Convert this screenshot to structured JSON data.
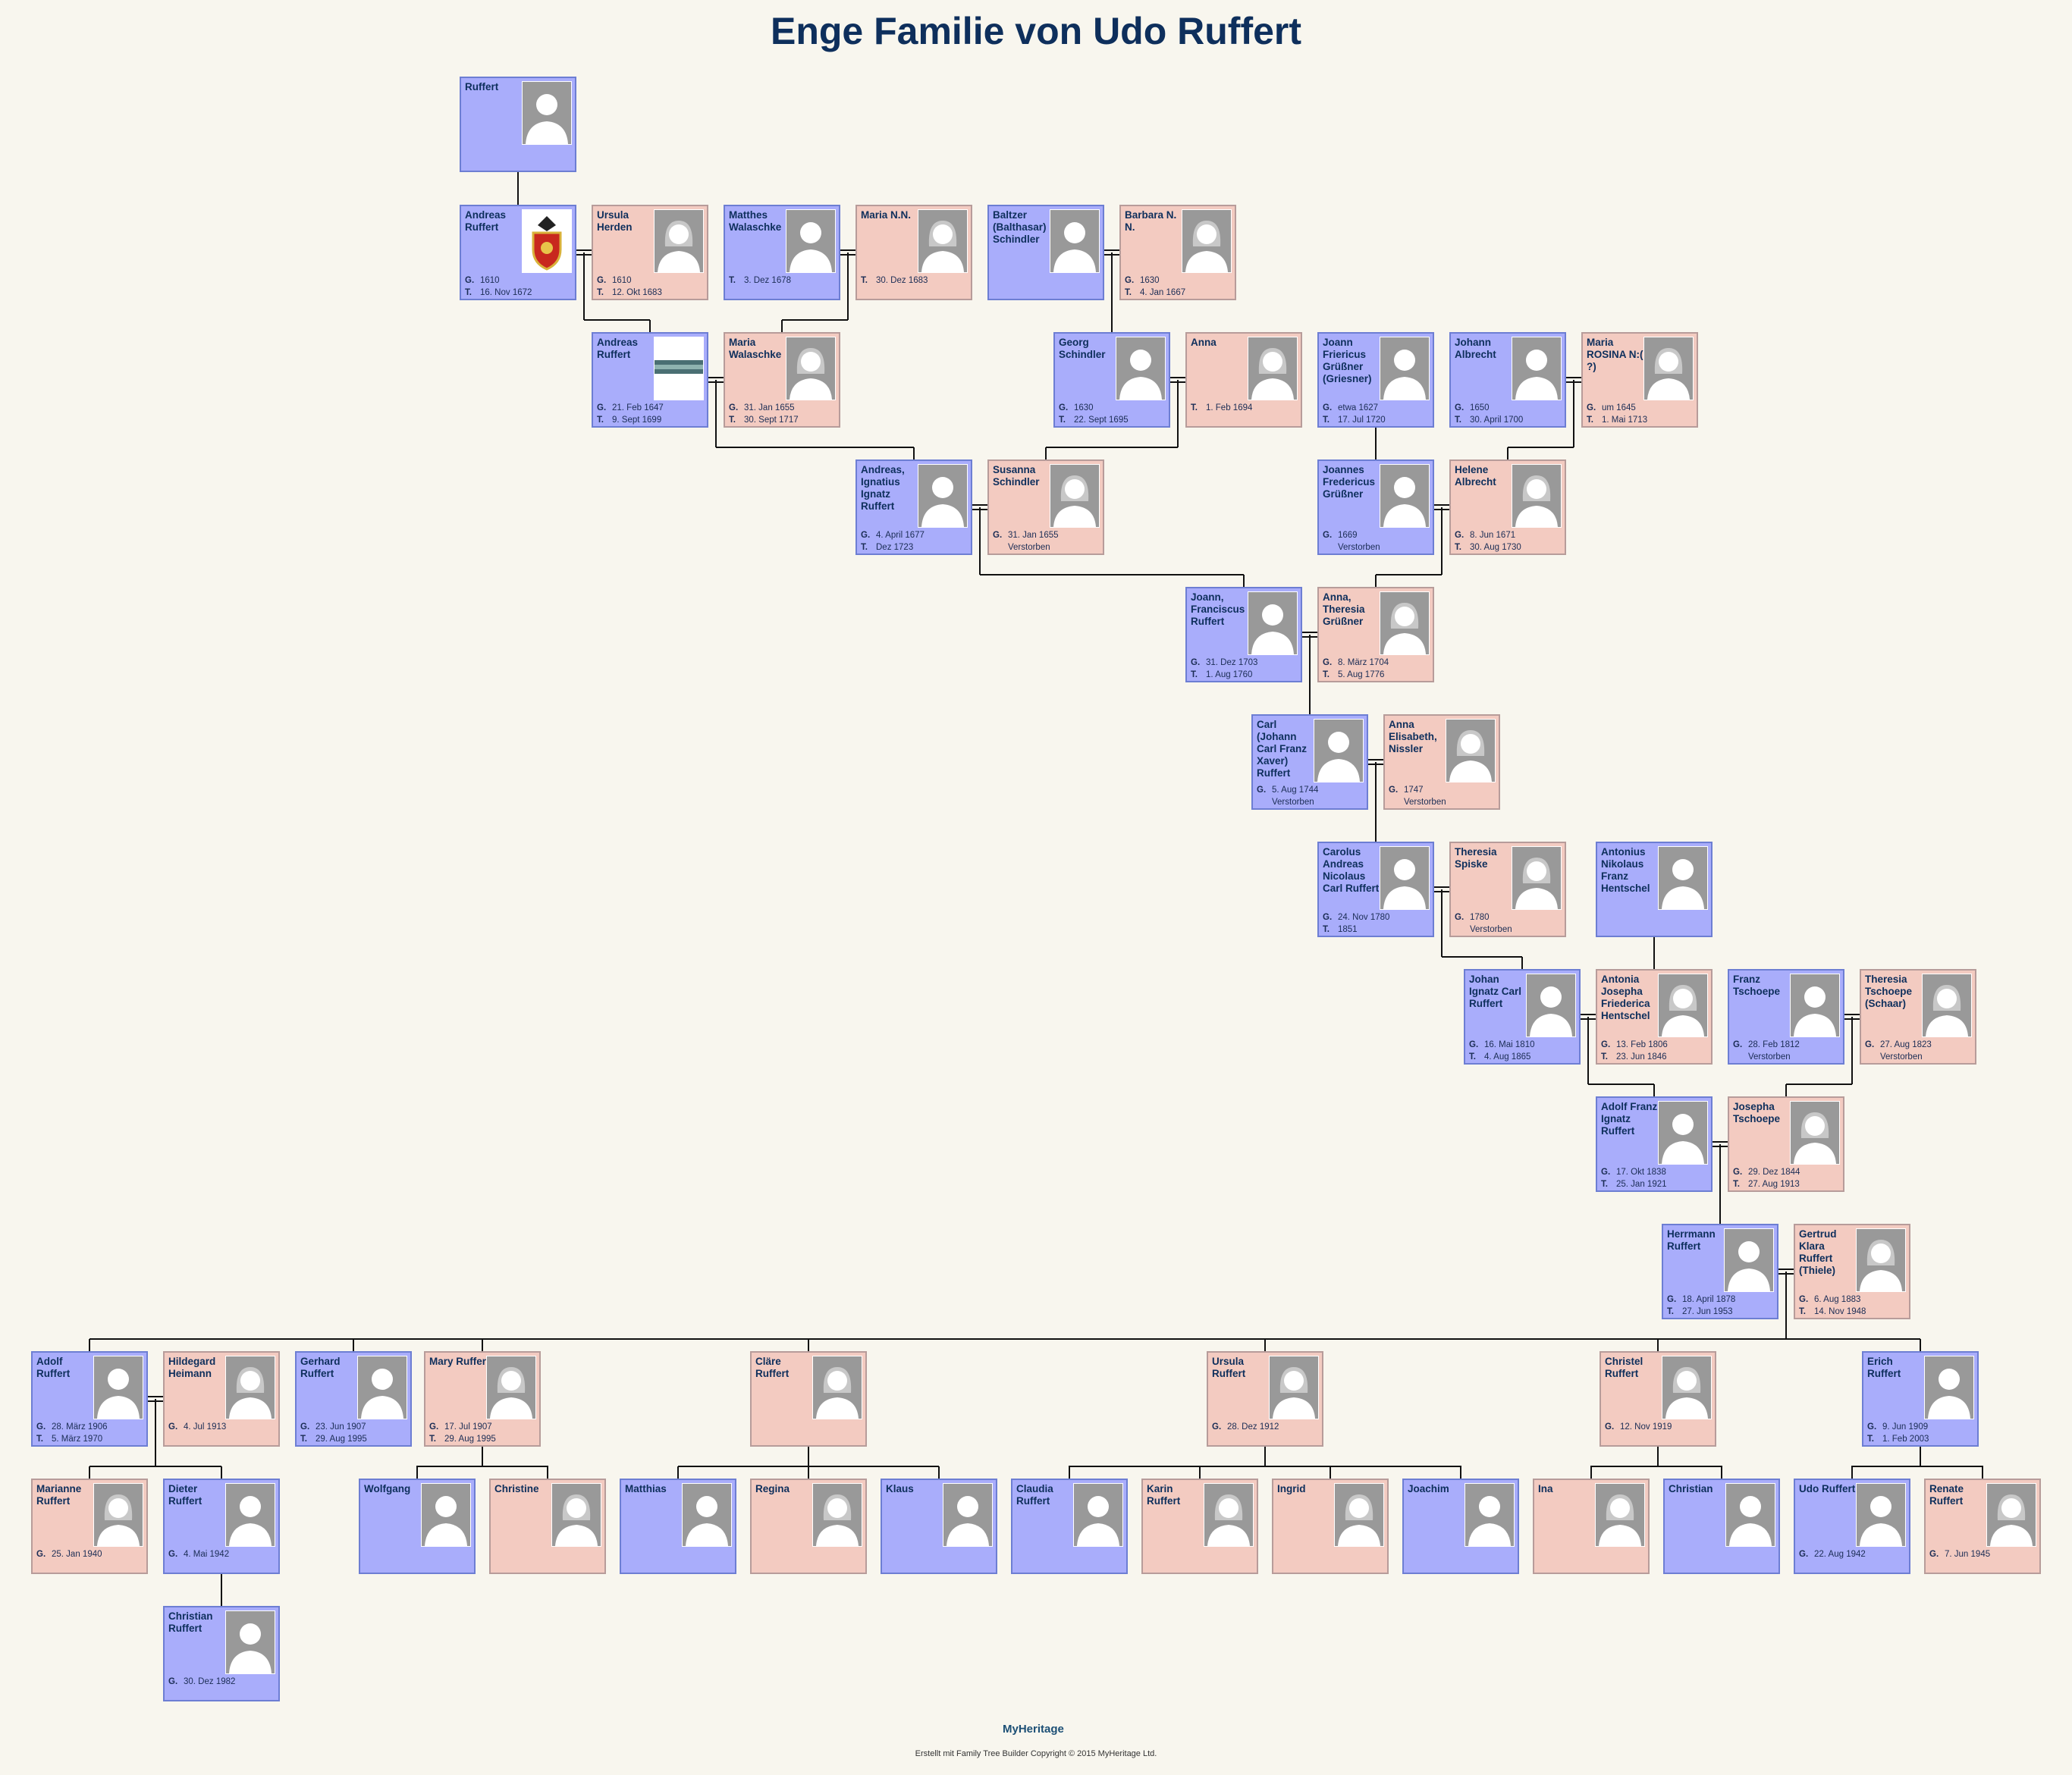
{
  "title": "Enge Familie von Udo Ruffert",
  "footer": {
    "logo": "MyHeritage",
    "copyright": "Erstellt mit Family Tree Builder Copyright © 2015 MyHeritage Ltd."
  },
  "persons": [
    {
      "id": "p1",
      "name": "Ruffert",
      "sex": "m",
      "ev": []
    },
    {
      "id": "p2",
      "name": "Andreas Ruffert",
      "sex": "m",
      "photo": "coat-of-arms",
      "ev": [
        [
          "G.",
          "1610"
        ],
        [
          "T.",
          "16. Nov 1672"
        ]
      ]
    },
    {
      "id": "p3",
      "name": "Ursula Herden",
      "sex": "f",
      "ev": [
        [
          "G.",
          "1610"
        ],
        [
          "T.",
          "12. Okt 1683"
        ]
      ]
    },
    {
      "id": "p4",
      "name": "Matthes Walaschke",
      "sex": "m",
      "ev": [
        [
          "T.",
          "3. Dez 1678"
        ]
      ]
    },
    {
      "id": "p5",
      "name": "Maria N.N.",
      "sex": "f",
      "ev": [
        [
          "T.",
          "30. Dez 1683"
        ]
      ]
    },
    {
      "id": "p6",
      "name": "Baltzer (Balthasar) Schindler",
      "sex": "m",
      "ev": []
    },
    {
      "id": "p7",
      "name": "Barbara N. N.",
      "sex": "f",
      "ev": [
        [
          "G.",
          "1630"
        ],
        [
          "T.",
          "4. Jan 1667"
        ]
      ]
    },
    {
      "id": "p8",
      "name": "Andreas Ruffert",
      "sex": "m",
      "photo": "landscape",
      "ev": [
        [
          "G.",
          "21. Feb 1647"
        ],
        [
          "T.",
          "9. Sept 1699"
        ]
      ]
    },
    {
      "id": "p9",
      "name": "Maria Walaschke",
      "sex": "f",
      "ev": [
        [
          "G.",
          "31. Jan 1655"
        ],
        [
          "T.",
          "30. Sept 1717"
        ]
      ]
    },
    {
      "id": "p10",
      "name": "Georg Schindler",
      "sex": "m",
      "ev": [
        [
          "G.",
          "1630"
        ],
        [
          "T.",
          "22. Sept 1695"
        ]
      ]
    },
    {
      "id": "p11",
      "name": "Anna",
      "sex": "f",
      "ev": [
        [
          "T.",
          "1. Feb 1694"
        ]
      ]
    },
    {
      "id": "p12",
      "name": "Joann Friericus Grüßner (Griesner)",
      "sex": "m",
      "ev": [
        [
          "G.",
          "etwa 1627"
        ],
        [
          "T.",
          "17. Jul 1720"
        ]
      ]
    },
    {
      "id": "p13",
      "name": "Johann Albrecht",
      "sex": "m",
      "ev": [
        [
          "G.",
          "1650"
        ],
        [
          "T.",
          "30. April 1700"
        ]
      ]
    },
    {
      "id": "p14",
      "name": "Maria ROSINA N:( ?)",
      "sex": "f",
      "ev": [
        [
          "G.",
          "um 1645"
        ],
        [
          "T.",
          "1. Mai 1713"
        ]
      ]
    },
    {
      "id": "p15",
      "name": "Andreas, Ignatius Ignatz Ruffert",
      "sex": "m",
      "ev": [
        [
          "G.",
          "4. April 1677"
        ],
        [
          "T.",
          "Dez 1723"
        ]
      ]
    },
    {
      "id": "p16",
      "name": "Susanna Schindler",
      "sex": "f",
      "ev": [
        [
          "G.",
          "31. Jan 1655"
        ],
        [
          "",
          "Verstorben"
        ]
      ]
    },
    {
      "id": "p17",
      "name": "Joannes Fredericus Grüßner",
      "sex": "m",
      "ev": [
        [
          "G.",
          "1669"
        ],
        [
          "",
          "Verstorben"
        ]
      ]
    },
    {
      "id": "p18",
      "name": "Helene Albrecht",
      "sex": "f",
      "ev": [
        [
          "G.",
          "8. Jun 1671"
        ],
        [
          "T.",
          "30. Aug 1730"
        ]
      ]
    },
    {
      "id": "p19",
      "name": "Joann, Franciscus Ruffert",
      "sex": "m",
      "ev": [
        [
          "G.",
          "31. Dez 1703"
        ],
        [
          "T.",
          "1. Aug 1760"
        ]
      ]
    },
    {
      "id": "p20",
      "name": "Anna, Theresia Grüßner",
      "sex": "f",
      "ev": [
        [
          "G.",
          "8. März 1704"
        ],
        [
          "T.",
          "5. Aug 1776"
        ]
      ]
    },
    {
      "id": "p21",
      "name": "Carl (Johann Carl Franz Xaver) Ruffert",
      "sex": "m",
      "ev": [
        [
          "G.",
          "5. Aug 1744"
        ],
        [
          "",
          "Verstorben"
        ]
      ]
    },
    {
      "id": "p22",
      "name": "Anna Elisabeth, Nissler",
      "sex": "f",
      "ev": [
        [
          "G.",
          "1747"
        ],
        [
          "",
          "Verstorben"
        ]
      ]
    },
    {
      "id": "p23",
      "name": "Carolus Andreas Nicolaus Carl Ruffert",
      "sex": "m",
      "ev": [
        [
          "G.",
          "24. Nov 1780"
        ],
        [
          "T.",
          "1851"
        ]
      ]
    },
    {
      "id": "p24",
      "name": "Theresia Spiske",
      "sex": "f",
      "ev": [
        [
          "G.",
          "1780"
        ],
        [
          "",
          "Verstorben"
        ]
      ]
    },
    {
      "id": "p25",
      "name": "Antonius Nikolaus Franz Hentschel",
      "sex": "m",
      "ev": []
    },
    {
      "id": "p26",
      "name": "Johan Ignatz Carl Ruffert",
      "sex": "m",
      "ev": [
        [
          "G.",
          "16. Mai 1810"
        ],
        [
          "T.",
          "4. Aug 1865"
        ]
      ]
    },
    {
      "id": "p27",
      "name": "Antonia Josepha Friederica Hentschel",
      "sex": "f",
      "ev": [
        [
          "G.",
          "13. Feb 1806"
        ],
        [
          "T.",
          "23. Jun 1846"
        ]
      ]
    },
    {
      "id": "p28",
      "name": "Franz Tschoepe",
      "sex": "m",
      "ev": [
        [
          "G.",
          "28. Feb 1812"
        ],
        [
          "",
          "Verstorben"
        ]
      ]
    },
    {
      "id": "p29",
      "name": "Theresia Tschoepe (Schaar)",
      "sex": "f",
      "ev": [
        [
          "G.",
          "27. Aug 1823"
        ],
        [
          "",
          "Verstorben"
        ]
      ]
    },
    {
      "id": "p30",
      "name": "Adolf Franz Ignatz Ruffert",
      "sex": "m",
      "ev": [
        [
          "G.",
          "17. Okt 1838"
        ],
        [
          "T.",
          "25. Jan 1921"
        ]
      ]
    },
    {
      "id": "p31",
      "name": "Josepha Tschoepe",
      "sex": "f",
      "ev": [
        [
          "G.",
          "29. Dez 1844"
        ],
        [
          "T.",
          "27. Aug 1913"
        ]
      ]
    },
    {
      "id": "p32",
      "name": "Herrmann Ruffert",
      "sex": "m",
      "ev": [
        [
          "G.",
          "18. April 1878"
        ],
        [
          "T.",
          "27. Jun 1953"
        ]
      ]
    },
    {
      "id": "p33",
      "name": "Gertrud Klara Ruffert (Thiele)",
      "sex": "f",
      "ev": [
        [
          "G.",
          "6. Aug 1883"
        ],
        [
          "T.",
          "14. Nov 1948"
        ]
      ]
    },
    {
      "id": "p34",
      "name": "Adolf Ruffert",
      "sex": "m",
      "ev": [
        [
          "G.",
          "28. März 1906"
        ],
        [
          "T.",
          "5. März 1970"
        ]
      ]
    },
    {
      "id": "p35",
      "name": "Hildegard Heimann",
      "sex": "f",
      "ev": [
        [
          "G.",
          "4. Jul 1913"
        ]
      ]
    },
    {
      "id": "p36",
      "name": "Gerhard Ruffert",
      "sex": "m",
      "ev": [
        [
          "G.",
          "23. Jun 1907"
        ],
        [
          "T.",
          "29. Aug 1995"
        ]
      ]
    },
    {
      "id": "p37",
      "name": "Mary Ruffert",
      "sex": "f",
      "ev": [
        [
          "G.",
          "17. Jul 1907"
        ],
        [
          "T.",
          "29. Aug 1995"
        ]
      ]
    },
    {
      "id": "p38",
      "name": "Cläre Ruffert",
      "sex": "f",
      "ev": []
    },
    {
      "id": "p39",
      "name": "Ursula Ruffert",
      "sex": "f",
      "ev": [
        [
          "G.",
          "28. Dez 1912"
        ]
      ]
    },
    {
      "id": "p40",
      "name": "Christel Ruffert",
      "sex": "f",
      "ev": [
        [
          "G.",
          "12. Nov 1919"
        ]
      ]
    },
    {
      "id": "p41",
      "name": "Erich Ruffert",
      "sex": "m",
      "ev": [
        [
          "G.",
          "9. Jun 1909"
        ],
        [
          "T.",
          "1. Feb 2003"
        ]
      ]
    },
    {
      "id": "p42",
      "name": "Marianne Ruffert",
      "sex": "f",
      "ev": [
        [
          "G.",
          "25. Jan 1940"
        ]
      ]
    },
    {
      "id": "p43",
      "name": "Dieter Ruffert",
      "sex": "m",
      "ev": [
        [
          "G.",
          "4. Mai 1942"
        ]
      ]
    },
    {
      "id": "p44",
      "name": "Wolfgang",
      "sex": "m",
      "ev": []
    },
    {
      "id": "p45",
      "name": "Christine",
      "sex": "f",
      "ev": []
    },
    {
      "id": "p46",
      "name": "Matthias",
      "sex": "m",
      "ev": []
    },
    {
      "id": "p47",
      "name": "Regina",
      "sex": "f",
      "ev": []
    },
    {
      "id": "p48",
      "name": "Klaus",
      "sex": "m",
      "ev": []
    },
    {
      "id": "p49",
      "name": "Claudia Ruffert",
      "sex": "m",
      "ev": []
    },
    {
      "id": "p50",
      "name": "Karin Ruffert",
      "sex": "f",
      "ev": []
    },
    {
      "id": "p51",
      "name": "Ingrid",
      "sex": "f",
      "ev": []
    },
    {
      "id": "p52",
      "name": "Joachim",
      "sex": "m",
      "ev": []
    },
    {
      "id": "p53",
      "name": "Ina",
      "sex": "f",
      "ev": []
    },
    {
      "id": "p54",
      "name": "Christian",
      "sex": "m",
      "ev": []
    },
    {
      "id": "p55",
      "name": "Udo Ruffert",
      "sex": "m",
      "ev": [
        [
          "G.",
          "22. Aug 1942"
        ]
      ]
    },
    {
      "id": "p56",
      "name": "Renate Ruffert",
      "sex": "f",
      "ev": [
        [
          "G.",
          "7. Jun 1945"
        ]
      ]
    },
    {
      "id": "p57",
      "name": "Christian Ruffert",
      "sex": "m",
      "ev": [
        [
          "G.",
          "30. Dez 1982"
        ]
      ]
    }
  ]
}
